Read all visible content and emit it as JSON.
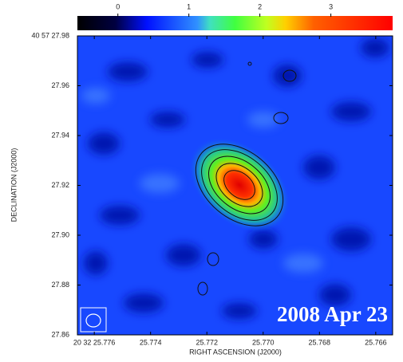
{
  "chart_data": {
    "type": "image",
    "colorbar": {
      "ticks": [
        0,
        1,
        2,
        3
      ],
      "lim": [
        -0.57,
        3.87
      ]
    },
    "xlabel": "RIGHT ASCENSION (J2000)",
    "ylabel": "DECLINATION (J2000)",
    "xlim": [
      25.7766,
      25.7654
    ],
    "xticks": [
      {
        "value": 25.776,
        "label": "20 32 25.776"
      },
      25.774,
      25.772,
      {
        "value": 25.77,
        "label": "25.770"
      },
      25.768,
      25.766
    ],
    "ylim": [
      27.86,
      27.98
    ],
    "yticks": [
      {
        "value": 27.86,
        "label": "27.86"
      },
      27.88,
      {
        "value": 27.9,
        "label": "27.90"
      },
      {
        "value": 27.92,
        "label": "27.92"
      },
      27.94,
      27.96,
      {
        "value": 27.98,
        "label": "40 57 27.98"
      }
    ],
    "annotation": "2008 Apr 23"
  }
}
